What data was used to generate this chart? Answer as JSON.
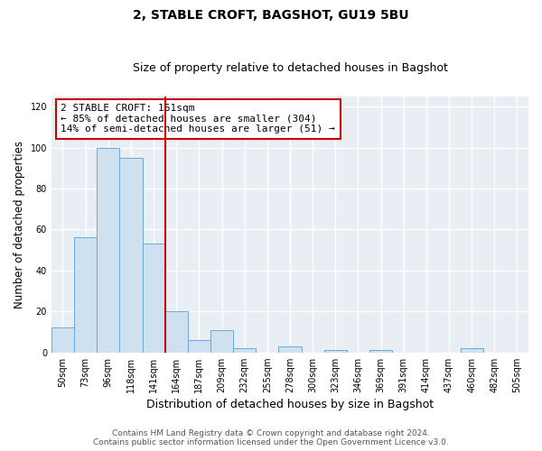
{
  "title": "2, STABLE CROFT, BAGSHOT, GU19 5BU",
  "subtitle": "Size of property relative to detached houses in Bagshot",
  "xlabel": "Distribution of detached houses by size in Bagshot",
  "ylabel": "Number of detached properties",
  "bar_color": "#cfe0f0",
  "bar_edge_color": "#6aaad4",
  "categories": [
    "50sqm",
    "73sqm",
    "96sqm",
    "118sqm",
    "141sqm",
    "164sqm",
    "187sqm",
    "209sqm",
    "232sqm",
    "255sqm",
    "278sqm",
    "300sqm",
    "323sqm",
    "346sqm",
    "369sqm",
    "391sqm",
    "414sqm",
    "437sqm",
    "460sqm",
    "482sqm",
    "505sqm"
  ],
  "values": [
    12,
    56,
    100,
    95,
    53,
    20,
    6,
    11,
    2,
    0,
    3,
    0,
    1,
    0,
    1,
    0,
    0,
    0,
    2,
    0,
    0
  ],
  "ylim": [
    0,
    125
  ],
  "yticks": [
    0,
    20,
    40,
    60,
    80,
    100,
    120
  ],
  "vline_color": "#cc0000",
  "annotation_line1": "2 STABLE CROFT: 161sqm",
  "annotation_line2": "← 85% of detached houses are smaller (304)",
  "annotation_line3": "14% of semi-detached houses are larger (51) →",
  "footer_line1": "Contains HM Land Registry data © Crown copyright and database right 2024.",
  "footer_line2": "Contains public sector information licensed under the Open Government Licence v3.0.",
  "plot_bg_color": "#e8eef4",
  "grid_color": "#ffffff",
  "title_fontsize": 10,
  "subtitle_fontsize": 9,
  "tick_label_fontsize": 7,
  "ylabel_fontsize": 8.5,
  "xlabel_fontsize": 9,
  "footer_fontsize": 6.5,
  "annotation_fontsize": 8
}
